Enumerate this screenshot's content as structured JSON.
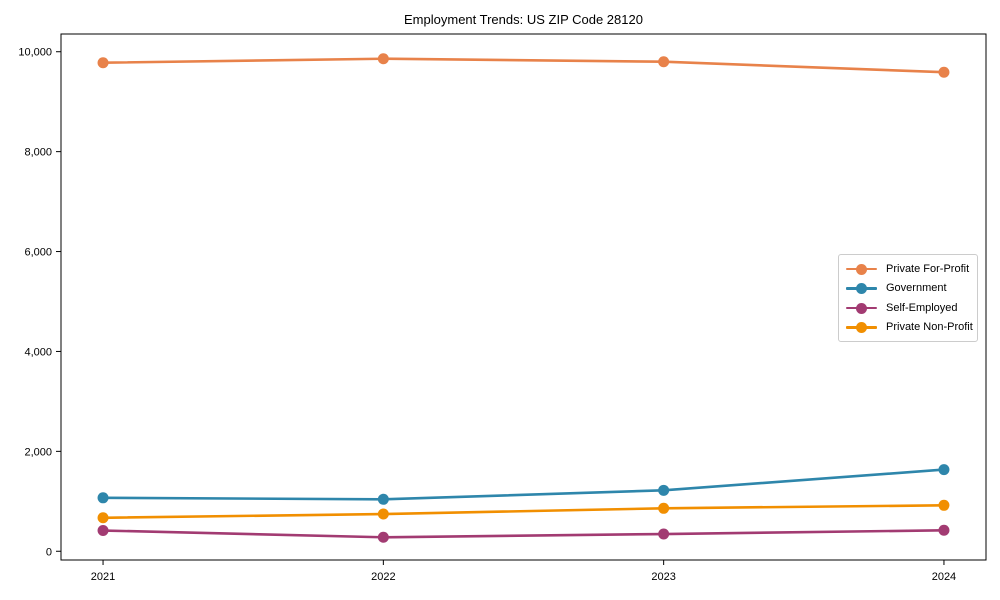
{
  "chart_data": {
    "type": "line",
    "title": "Employment Trends: US ZIP Code 28120",
    "x_labels": [
      "2021",
      "2022",
      "2023",
      "2024"
    ],
    "series": [
      {
        "name": "Private For-Profit",
        "color": "#E8824A",
        "values": [
          9780,
          9860,
          9800,
          9590
        ]
      },
      {
        "name": "Government",
        "color": "#2E86AB",
        "values": [
          1070,
          1040,
          1220,
          1635
        ]
      },
      {
        "name": "Self-Employed",
        "color": "#A23B72",
        "values": [
          415,
          280,
          345,
          420
        ]
      },
      {
        "name": "Private Non-Profit",
        "color": "#F18F01",
        "values": [
          670,
          745,
          860,
          920
        ]
      }
    ],
    "ytick_labels": [
      "0",
      "2,000",
      "4,000",
      "6,000",
      "8,000",
      "10,000"
    ],
    "yticks": [
      0,
      2000,
      4000,
      6000,
      8000,
      10000
    ],
    "ylim": [
      -175,
      10355
    ],
    "xlabel": "",
    "ylabel": "",
    "grid": false,
    "legend_position": "center-right",
    "marker": "circle",
    "background_color": "#FFFFFF",
    "axis_color": "#000000"
  }
}
